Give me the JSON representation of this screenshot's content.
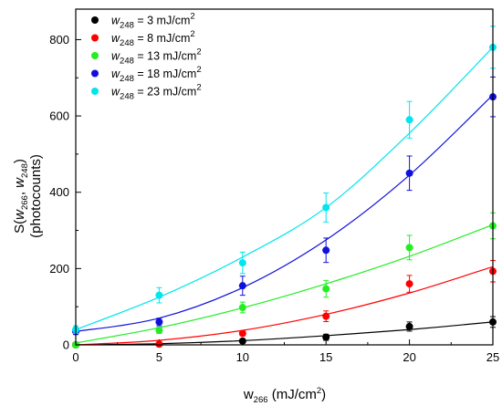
{
  "chart_data": {
    "type": "scatter",
    "x": [
      0,
      5,
      10,
      15,
      20,
      25
    ],
    "xlim": [
      0,
      25
    ],
    "ylim": [
      0,
      880
    ],
    "xticks": [
      "0",
      "5",
      "10",
      "15",
      "20",
      "25"
    ],
    "yticks": [
      "0",
      "200",
      "400",
      "600",
      "800"
    ],
    "xticks_values": [
      0,
      5,
      10,
      15,
      20,
      25
    ],
    "yticks_values": [
      0,
      200,
      400,
      600,
      800
    ],
    "xlabel": {
      "main": "w",
      "sub": "266",
      "unit": " (mJ/cm",
      "sup": "2",
      "close": ")"
    },
    "ylabel": {
      "line1_main": "S(",
      "w1": "w",
      "w1_sub": "266",
      "sep": ", ",
      "w2": "w",
      "w2_sub": "248",
      "close": ")",
      "line2": "(photocounts)"
    },
    "legend_position": "top-left",
    "series": [
      {
        "name": "w",
        "sub": "248",
        "value": " = 3 mJ/cm",
        "sup": "2",
        "color": "#000000",
        "values": [
          0,
          2,
          10,
          20,
          48,
          60
        ],
        "err": [
          0,
          3,
          5,
          8,
          12,
          14
        ],
        "fit": [
          [
            0,
            0
          ],
          [
            5,
            3
          ],
          [
            10,
            11
          ],
          [
            15,
            24
          ],
          [
            20,
            40
          ],
          [
            25,
            60
          ]
        ]
      },
      {
        "name": "w",
        "sub": "248",
        "value": " = 8 mJ/cm",
        "sup": "2",
        "color": "#ff0000",
        "values": [
          0,
          2,
          30,
          75,
          160,
          193
        ],
        "err": [
          0,
          4,
          6,
          14,
          22,
          28
        ],
        "fit": [
          [
            0,
            0
          ],
          [
            5,
            12
          ],
          [
            10,
            38
          ],
          [
            15,
            80
          ],
          [
            20,
            136
          ],
          [
            25,
            205
          ]
        ]
      },
      {
        "name": "w",
        "sub": "248",
        "value": " = 13 mJ/cm",
        "sup": "2",
        "color": "#22ee22",
        "values": [
          0,
          38,
          98,
          147,
          255,
          312
        ],
        "err": [
          0,
          8,
          14,
          22,
          32,
          34
        ],
        "fit": [
          [
            0,
            5
          ],
          [
            5,
            45
          ],
          [
            10,
            97
          ],
          [
            15,
            160
          ],
          [
            20,
            232
          ],
          [
            25,
            315
          ]
        ]
      },
      {
        "name": "w",
        "sub": "248",
        "value": " = 18 mJ/cm",
        "sup": "2",
        "color": "#1010dd",
        "values": [
          35,
          60,
          155,
          248,
          450,
          650
        ],
        "err": [
          8,
          10,
          25,
          32,
          45,
          52
        ],
        "fit": [
          [
            0,
            35
          ],
          [
            5,
            70
          ],
          [
            10,
            150
          ],
          [
            15,
            275
          ],
          [
            20,
            445
          ],
          [
            25,
            655
          ]
        ]
      },
      {
        "name": "w",
        "sub": "248",
        "value": " = 23 mJ/cm",
        "sup": "2",
        "color": "#00e5ee",
        "values": [
          40,
          130,
          215,
          360,
          590,
          780
        ],
        "err": [
          10,
          20,
          28,
          38,
          48,
          55
        ],
        "fit": [
          [
            0,
            40
          ],
          [
            5,
            125
          ],
          [
            10,
            230
          ],
          [
            15,
            360
          ],
          [
            20,
            555
          ],
          [
            25,
            780
          ]
        ]
      }
    ]
  }
}
